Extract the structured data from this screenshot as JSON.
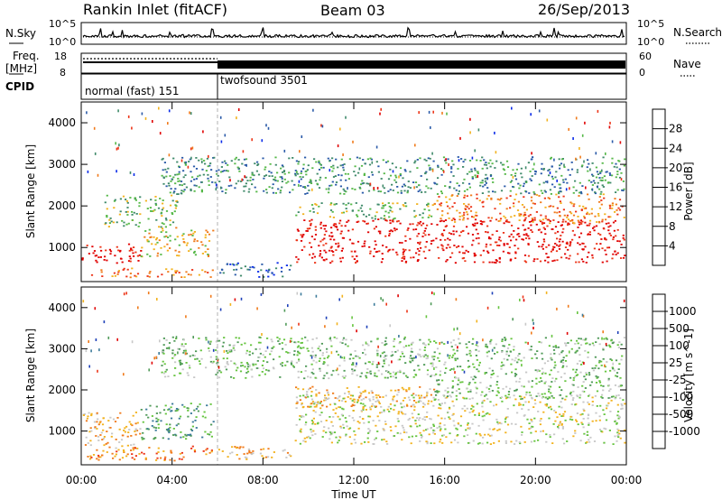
{
  "header": {
    "title": "Rankin Inlet (fitACF)",
    "beam": "Beam 03",
    "date": "26/Sep/2013"
  },
  "noise_panel": {
    "left_label": "N.Sky",
    "left_ticks": [
      "10^5",
      "10^0"
    ],
    "right_ticks": [
      "10^5",
      "10^0"
    ],
    "right_label": "N.Search"
  },
  "freq_panel": {
    "left_label_1": "Freq.",
    "left_label_2": "[MHz]",
    "left_ticks": [
      "18",
      "8"
    ],
    "right_ticks": [
      "60",
      "0"
    ],
    "right_label": "Nave"
  },
  "cpid": {
    "label": "CPID",
    "modes": [
      {
        "name": "normal (fast) 151",
        "start_hour": 0,
        "end_hour": 6
      },
      {
        "name": "twofsound 3501",
        "start_hour": 6,
        "end_hour": 24
      }
    ]
  },
  "x_axis": {
    "label": "Time UT",
    "ticks": [
      "00:00",
      "04:00",
      "08:00",
      "12:00",
      "16:00",
      "20:00",
      "00:00"
    ]
  },
  "chart_data": [
    {
      "type": "heatmap",
      "name": "power",
      "ylabel": "Slant Range [km]",
      "y_ticks": [
        "1000",
        "2000",
        "3000",
        "4000"
      ],
      "y_tick_values": [
        1000,
        2000,
        3000,
        4000
      ],
      "ylim": [
        180,
        4500
      ],
      "xlim": [
        0,
        24
      ],
      "colorbar_label": "Power [dB]",
      "colorbar_ticks": [
        "4",
        "8",
        "12",
        "16",
        "20",
        "24",
        "28"
      ],
      "colorbar_range": [
        0,
        32
      ],
      "colorbar_colors": [
        "#0a2be8",
        "#2a5aa8",
        "#3f8a6a",
        "#55b848",
        "#f2b21e",
        "#f07a1a",
        "#ec3417",
        "#e00000"
      ],
      "regions": [
        {
          "t0": 0.0,
          "t1": 2.6,
          "r0": 600,
          "r1": 1100,
          "level": 7
        },
        {
          "t0": 0.2,
          "t1": 5.8,
          "r0": 300,
          "r1": 520,
          "level": 5
        },
        {
          "t0": 1.0,
          "t1": 4.2,
          "r0": 1500,
          "r1": 2300,
          "level": 3
        },
        {
          "t0": 2.6,
          "t1": 5.8,
          "r0": 800,
          "r1": 1500,
          "level": 4
        },
        {
          "t0": 9.4,
          "t1": 23.9,
          "r0": 650,
          "r1": 1700,
          "level": 7
        },
        {
          "t0": 9.4,
          "t1": 15.5,
          "r0": 1700,
          "r1": 2100,
          "level": 3
        },
        {
          "t0": 15.5,
          "t1": 23.9,
          "r0": 1600,
          "r1": 2300,
          "level": 5
        },
        {
          "t0": 6.0,
          "t1": 9.2,
          "r0": 300,
          "r1": 650,
          "level": 1
        },
        {
          "t0": 3.5,
          "t1": 23.9,
          "r0": 2300,
          "r1": 3200,
          "level": 2
        }
      ]
    },
    {
      "type": "heatmap",
      "name": "velocity",
      "ylabel": "Slant Range [km]",
      "y_ticks": [
        "1000",
        "2000",
        "3000",
        "4000"
      ],
      "y_tick_values": [
        1000,
        2000,
        3000,
        4000
      ],
      "ylim": [
        180,
        4500
      ],
      "xlim": [
        0,
        24
      ],
      "colorbar_label": "Velocity [m s^-1]",
      "colorbar_ticks": [
        "1000",
        "500",
        "100",
        "25",
        "-25",
        "-100",
        "-500",
        "-1000"
      ],
      "colorbar_colors": [
        "#1c3fb8",
        "#3b7a9a",
        "#4f9a58",
        "#66c43f",
        "#c8c8c8",
        "#f2b21e",
        "#f07a1a",
        "#ec3417",
        "#e00000"
      ],
      "regions": [
        {
          "t0": 0.0,
          "t1": 2.6,
          "r0": 600,
          "r1": 1500,
          "level": 5
        },
        {
          "t0": 0.2,
          "t1": 5.8,
          "r0": 300,
          "r1": 650,
          "level": 6
        },
        {
          "t0": 2.6,
          "t1": 5.8,
          "r0": 800,
          "r1": 1700,
          "level": 2
        },
        {
          "t0": 9.4,
          "t1": 23.9,
          "r0": 700,
          "r1": 1900,
          "level": 4
        },
        {
          "t0": 15.5,
          "t1": 23.9,
          "r0": 1800,
          "r1": 2300,
          "level": 3
        },
        {
          "t0": 9.4,
          "t1": 15.5,
          "r0": 1600,
          "r1": 2100,
          "level": 5
        },
        {
          "t0": 6.0,
          "t1": 9.2,
          "r0": 300,
          "r1": 650,
          "level": 5
        },
        {
          "t0": 3.5,
          "t1": 23.9,
          "r0": 2300,
          "r1": 3300,
          "level": 3
        }
      ]
    }
  ]
}
